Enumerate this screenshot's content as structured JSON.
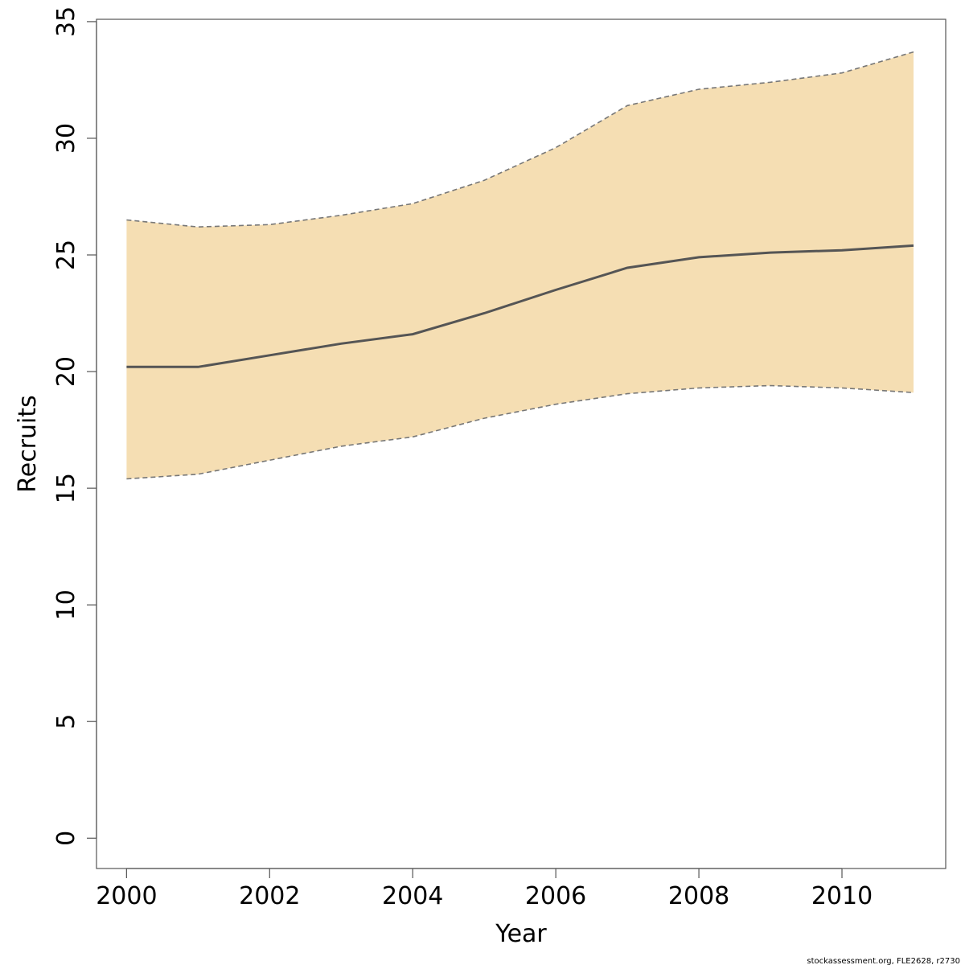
{
  "chart_data": {
    "type": "line",
    "title": "",
    "xlabel": "Year",
    "ylabel": "Recruits",
    "x": [
      2000,
      2001,
      2002,
      2003,
      2004,
      2005,
      2006,
      2007,
      2008,
      2009,
      2010,
      2011
    ],
    "series": [
      {
        "role": "estimate",
        "style": "solid",
        "values": [
          20.2,
          20.2,
          20.7,
          21.2,
          21.6,
          22.5,
          23.5,
          24.45,
          24.9,
          25.1,
          25.2,
          25.4
        ]
      },
      {
        "role": "upper-bound",
        "style": "dashed",
        "values": [
          26.5,
          26.2,
          26.3,
          26.7,
          27.2,
          28.2,
          29.6,
          31.4,
          32.1,
          32.4,
          32.8,
          33.7
        ]
      },
      {
        "role": "lower-bound",
        "style": "dashed",
        "values": [
          15.4,
          15.6,
          16.2,
          16.8,
          17.2,
          18.0,
          18.6,
          19.05,
          19.3,
          19.4,
          19.3,
          19.1
        ]
      }
    ],
    "xlim": [
      1999.58,
      2011.45
    ],
    "ylim": [
      -1.3,
      35.1
    ],
    "x_ticks": [
      "2000",
      "2002",
      "2004",
      "2006",
      "2008",
      "2010"
    ],
    "y_ticks": [
      "0",
      "5",
      "10",
      "15",
      "20",
      "25",
      "30",
      "35"
    ],
    "grid": false,
    "legend": "none",
    "colors": {
      "band_fill": "#f5deb3",
      "estimate_line": "#555555",
      "bound_line": "#777777",
      "axis": "#000000"
    }
  },
  "footer": {
    "credit": "stockassessment.org, FLE2628, r2730"
  }
}
